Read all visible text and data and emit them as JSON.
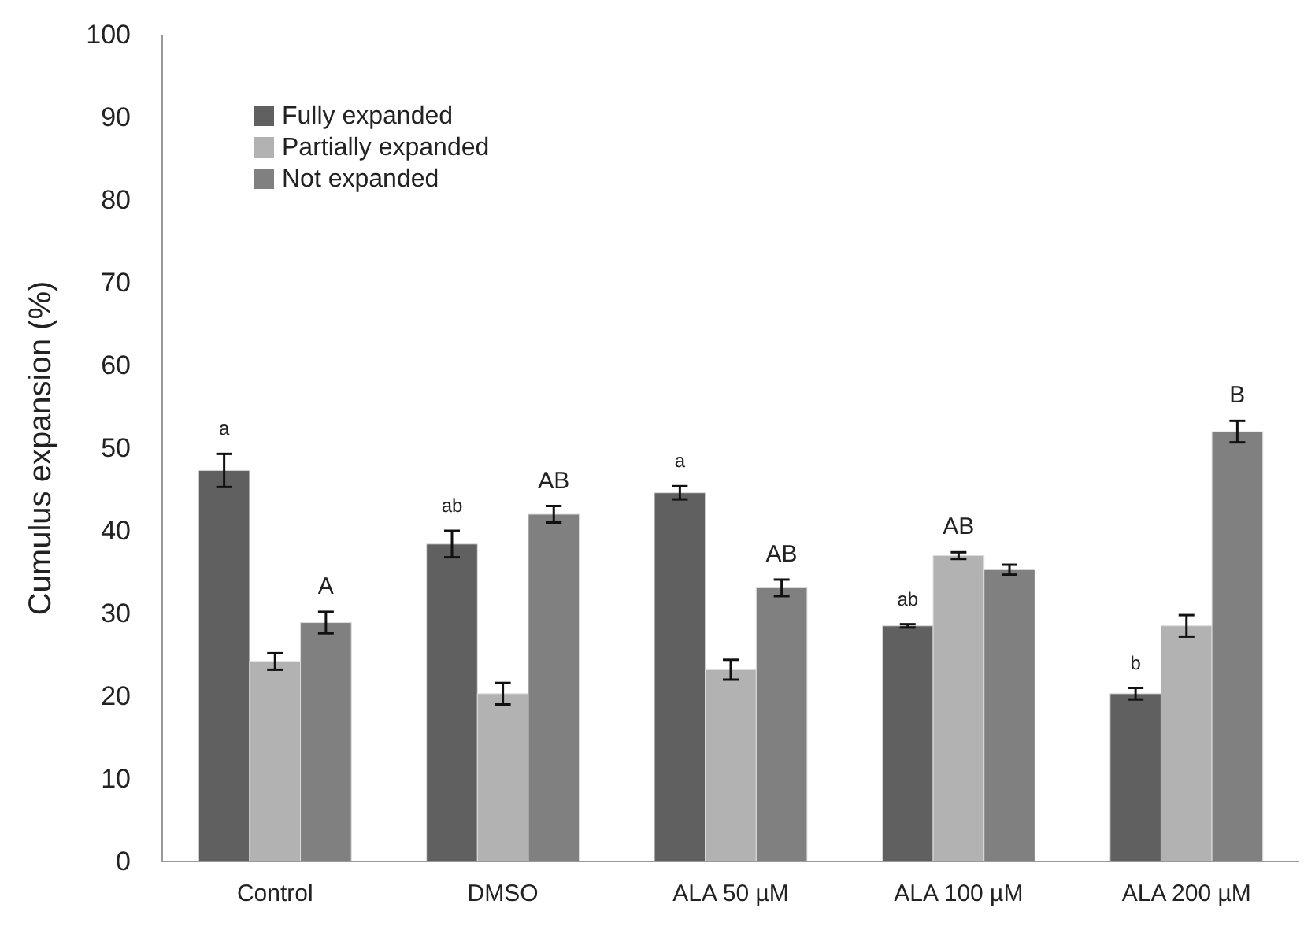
{
  "chart_data": {
    "type": "bar",
    "ylabel": "Cumulus expansion (%)",
    "categories": [
      "Control",
      "DMSO",
      "ALA 50 µM",
      "ALA 100 µM",
      "ALA 200 µM"
    ],
    "series": [
      {
        "name": "Fully expanded",
        "color": "#606060",
        "values": [
          47.3,
          38.4,
          44.6,
          28.5,
          20.3
        ],
        "errors": [
          2,
          1.6,
          0.8,
          0.2,
          0.7
        ],
        "value_labels": [
          "a",
          "ab",
          "a",
          "ab",
          "b"
        ]
      },
      {
        "name": "Partially expanded",
        "color": "#b2b2b2",
        "values": [
          24.2,
          20.3,
          23.2,
          37,
          28.5
        ],
        "errors": [
          1,
          1.3,
          1.2,
          0.4,
          1.3
        ],
        "value_labels": [
          null,
          null,
          null,
          "AB",
          null
        ]
      },
      {
        "name": "Not expanded",
        "color": "#808080",
        "values": [
          28.9,
          42,
          33.1,
          35.3,
          52
        ],
        "errors": [
          1.3,
          1,
          1,
          0.6,
          1.3
        ],
        "value_labels": [
          "A",
          "AB",
          "AB",
          null,
          "B"
        ]
      }
    ],
    "ylim": [
      0,
      100
    ],
    "yticks": [
      0,
      10,
      20,
      30,
      40,
      50,
      60,
      70,
      80,
      90,
      100
    ],
    "grid": false,
    "legend": "top left"
  }
}
